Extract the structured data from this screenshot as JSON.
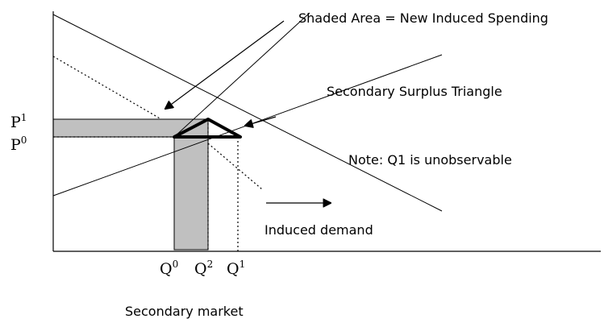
{
  "annotations": {
    "shaded_area": "Shaded Area = New Induced Spending",
    "triangle": "Secondary Surplus Triangle",
    "note": "Note: Q1 is unobservable",
    "induced_demand": "Induced demand"
  },
  "price_labels": [
    {
      "base": "P",
      "sup": "1"
    },
    {
      "base": "P",
      "sup": "0"
    }
  ],
  "quantity_labels": [
    {
      "base": "Q",
      "sup": "0"
    },
    {
      "base": "Q",
      "sup": "2"
    },
    {
      "base": "Q",
      "sup": "1"
    }
  ],
  "caption": "Secondary market"
}
